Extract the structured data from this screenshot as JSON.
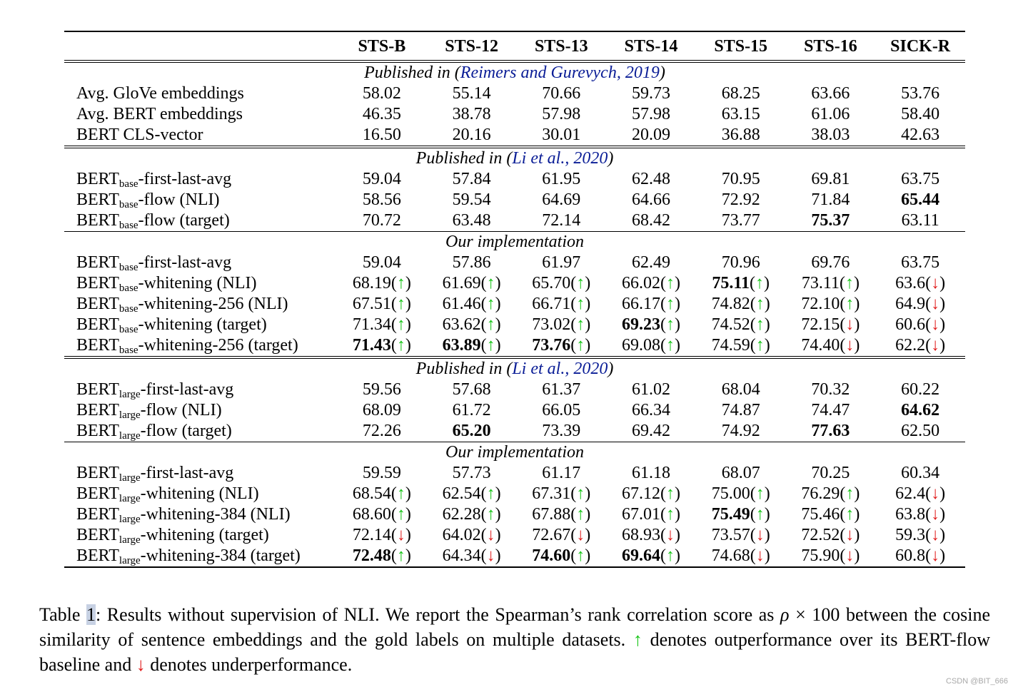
{
  "table": {
    "headers": [
      "",
      "STS-B",
      "STS-12",
      "STS-13",
      "STS-14",
      "STS-15",
      "STS-16",
      "SICK-R"
    ],
    "sections": [
      {
        "label": "Published in (",
        "cite": "Reimers and Gurevych, 2019",
        "label_end": ")",
        "rule": "double",
        "rows": [
          {
            "name": "Avg. GloVe embeddings",
            "cells": [
              {
                "v": "58.02"
              },
              {
                "v": "55.14"
              },
              {
                "v": "70.66"
              },
              {
                "v": "59.73"
              },
              {
                "v": "68.25"
              },
              {
                "v": "63.66"
              },
              {
                "v": "53.76"
              }
            ]
          },
          {
            "name": "Avg. BERT embeddings",
            "cells": [
              {
                "v": "46.35"
              },
              {
                "v": "38.78"
              },
              {
                "v": "57.98"
              },
              {
                "v": "57.98"
              },
              {
                "v": "63.15"
              },
              {
                "v": "61.06"
              },
              {
                "v": "58.40"
              }
            ]
          },
          {
            "name": "BERT CLS-vector",
            "cells": [
              {
                "v": "16.50"
              },
              {
                "v": "20.16"
              },
              {
                "v": "30.01"
              },
              {
                "v": "20.09"
              },
              {
                "v": "36.88"
              },
              {
                "v": "38.03"
              },
              {
                "v": "42.63"
              }
            ]
          }
        ]
      },
      {
        "label": "Published in (",
        "cite": "Li et al., 2020",
        "label_end": ")",
        "rule": "double",
        "rows": [
          {
            "name": "BERT",
            "sub": "base",
            "suffix": "-first-last-avg",
            "cells": [
              {
                "v": "59.04"
              },
              {
                "v": "57.84"
              },
              {
                "v": "61.95"
              },
              {
                "v": "62.48"
              },
              {
                "v": "70.95"
              },
              {
                "v": "69.81"
              },
              {
                "v": "63.75"
              }
            ]
          },
          {
            "name": "BERT",
            "sub": "base",
            "suffix": "-flow (NLI)",
            "cells": [
              {
                "v": "58.56"
              },
              {
                "v": "59.54"
              },
              {
                "v": "64.69"
              },
              {
                "v": "64.66"
              },
              {
                "v": "72.92"
              },
              {
                "v": "71.84"
              },
              {
                "v": "65.44",
                "b": true
              }
            ]
          },
          {
            "name": "BERT",
            "sub": "base",
            "suffix": "-flow (target)",
            "cells": [
              {
                "v": "70.72"
              },
              {
                "v": "63.48"
              },
              {
                "v": "72.14"
              },
              {
                "v": "68.42"
              },
              {
                "v": "73.77"
              },
              {
                "v": "75.37",
                "b": true
              },
              {
                "v": "63.11"
              }
            ]
          }
        ]
      },
      {
        "label": "Our implementation",
        "rule": "single",
        "rows": [
          {
            "name": "BERT",
            "sub": "base",
            "suffix": "-first-last-avg",
            "cells": [
              {
                "v": "59.04"
              },
              {
                "v": "57.86"
              },
              {
                "v": "61.97"
              },
              {
                "v": "62.49"
              },
              {
                "v": "70.96"
              },
              {
                "v": "69.76"
              },
              {
                "v": "63.75"
              }
            ]
          },
          {
            "name": "BERT",
            "sub": "base",
            "suffix": "-whitening (NLI)",
            "cells": [
              {
                "v": "68.19",
                "a": "up"
              },
              {
                "v": "61.69",
                "a": "up"
              },
              {
                "v": "65.70",
                "a": "up"
              },
              {
                "v": "66.02",
                "a": "up"
              },
              {
                "v": "75.11",
                "a": "up",
                "b": true
              },
              {
                "v": "73.11",
                "a": "up"
              },
              {
                "v": "63.6",
                "a": "down"
              }
            ]
          },
          {
            "name": "BERT",
            "sub": "base",
            "suffix": "-whitening-256 (NLI)",
            "cells": [
              {
                "v": "67.51",
                "a": "up"
              },
              {
                "v": "61.46",
                "a": "up"
              },
              {
                "v": "66.71",
                "a": "up"
              },
              {
                "v": "66.17",
                "a": "up"
              },
              {
                "v": "74.82",
                "a": "up"
              },
              {
                "v": "72.10",
                "a": "up"
              },
              {
                "v": "64.9",
                "a": "down"
              }
            ]
          },
          {
            "name": "BERT",
            "sub": "base",
            "suffix": "-whitening (target)",
            "cells": [
              {
                "v": "71.34",
                "a": "up"
              },
              {
                "v": "63.62",
                "a": "up"
              },
              {
                "v": "73.02",
                "a": "up"
              },
              {
                "v": "69.23",
                "a": "up",
                "b": true
              },
              {
                "v": "74.52",
                "a": "up"
              },
              {
                "v": "72.15",
                "a": "down"
              },
              {
                "v": "60.6",
                "a": "down"
              }
            ]
          },
          {
            "name": "BERT",
            "sub": "base",
            "suffix": "-whitening-256 (target)",
            "cells": [
              {
                "v": "71.43",
                "a": "up",
                "b": true
              },
              {
                "v": "63.89",
                "a": "up",
                "b": true
              },
              {
                "v": "73.76",
                "a": "up",
                "b": true
              },
              {
                "v": "69.08",
                "a": "up"
              },
              {
                "v": "74.59",
                "a": "up"
              },
              {
                "v": "74.40",
                "a": "down"
              },
              {
                "v": "62.2",
                "a": "down"
              }
            ]
          }
        ]
      },
      {
        "label": "Published in (",
        "cite": "Li et al., 2020",
        "label_end": ")",
        "rule": "double",
        "rows": [
          {
            "name": "BERT",
            "sub": "large",
            "suffix": "-first-last-avg",
            "cells": [
              {
                "v": "59.56"
              },
              {
                "v": "57.68"
              },
              {
                "v": "61.37"
              },
              {
                "v": "61.02"
              },
              {
                "v": "68.04"
              },
              {
                "v": "70.32"
              },
              {
                "v": "60.22"
              }
            ]
          },
          {
            "name": "BERT",
            "sub": "large",
            "suffix": "-flow (NLI)",
            "cells": [
              {
                "v": "68.09"
              },
              {
                "v": "61.72"
              },
              {
                "v": "66.05"
              },
              {
                "v": "66.34"
              },
              {
                "v": "74.87"
              },
              {
                "v": "74.47"
              },
              {
                "v": "64.62",
                "b": true
              }
            ]
          },
          {
            "name": "BERT",
            "sub": "large",
            "suffix": "-flow (target)",
            "cells": [
              {
                "v": "72.26"
              },
              {
                "v": "65.20",
                "b": true
              },
              {
                "v": "73.39"
              },
              {
                "v": "69.42"
              },
              {
                "v": "74.92"
              },
              {
                "v": "77.63",
                "b": true
              },
              {
                "v": "62.50"
              }
            ]
          }
        ]
      },
      {
        "label": "Our implementation",
        "rule": "single",
        "rows": [
          {
            "name": "BERT",
            "sub": "large",
            "suffix": "-first-last-avg",
            "cells": [
              {
                "v": "59.59"
              },
              {
                "v": "57.73"
              },
              {
                "v": "61.17"
              },
              {
                "v": "61.18"
              },
              {
                "v": "68.07"
              },
              {
                "v": "70.25"
              },
              {
                "v": "60.34"
              }
            ]
          },
          {
            "name": "BERT",
            "sub": "large",
            "suffix": "-whitening (NLI)",
            "cells": [
              {
                "v": "68.54",
                "a": "up"
              },
              {
                "v": "62.54",
                "a": "up"
              },
              {
                "v": "67.31",
                "a": "up"
              },
              {
                "v": "67.12",
                "a": "up"
              },
              {
                "v": "75.00",
                "a": "up"
              },
              {
                "v": "76.29",
                "a": "up"
              },
              {
                "v": "62.4",
                "a": "down"
              }
            ]
          },
          {
            "name": "BERT",
            "sub": "large",
            "suffix": "-whitening-384 (NLI)",
            "cells": [
              {
                "v": "68.60",
                "a": "up"
              },
              {
                "v": "62.28",
                "a": "up"
              },
              {
                "v": "67.88",
                "a": "up"
              },
              {
                "v": "67.01",
                "a": "up"
              },
              {
                "v": "75.49",
                "a": "up",
                "b": true
              },
              {
                "v": "75.46",
                "a": "up"
              },
              {
                "v": "63.8",
                "a": "down"
              }
            ]
          },
          {
            "name": "BERT",
            "sub": "large",
            "suffix": "-whitening (target)",
            "cells": [
              {
                "v": "72.14",
                "a": "down"
              },
              {
                "v": "64.02",
                "a": "down"
              },
              {
                "v": "72.67",
                "a": "down"
              },
              {
                "v": "68.93",
                "a": "down"
              },
              {
                "v": "73.57",
                "a": "down"
              },
              {
                "v": "72.52",
                "a": "down"
              },
              {
                "v": "59.3",
                "a": "down"
              }
            ]
          },
          {
            "name": "BERT",
            "sub": "large",
            "suffix": "-whitening-384 (target)",
            "cells": [
              {
                "v": "72.48",
                "a": "up",
                "b": true
              },
              {
                "v": "64.34",
                "a": "down"
              },
              {
                "v": "74.60",
                "a": "up",
                "b": true
              },
              {
                "v": "69.64",
                "a": "up",
                "b": true
              },
              {
                "v": "74.68",
                "a": "down"
              },
              {
                "v": "75.90",
                "a": "down"
              },
              {
                "v": "60.8",
                "a": "down"
              }
            ]
          }
        ]
      }
    ]
  },
  "caption": {
    "label": "Table ",
    "number": "1",
    "text1": ": Results without supervision of NLI. We report the Spearman’s rank correlation score as ",
    "rho": "ρ",
    "times": " × 100",
    "text2": " between the cosine similarity of sentence embeddings and the gold labels on multiple datasets. ",
    "up_arrow": "↑",
    "text3": " denotes outperformance over its BERT-flow baseline and ",
    "down_arrow": "↓",
    "text4": " denotes underperformance."
  },
  "watermark": "CSDN @BIT_666",
  "colors": {
    "up": "#14c414",
    "down": "#e01818",
    "cite": "#0a1d96"
  }
}
